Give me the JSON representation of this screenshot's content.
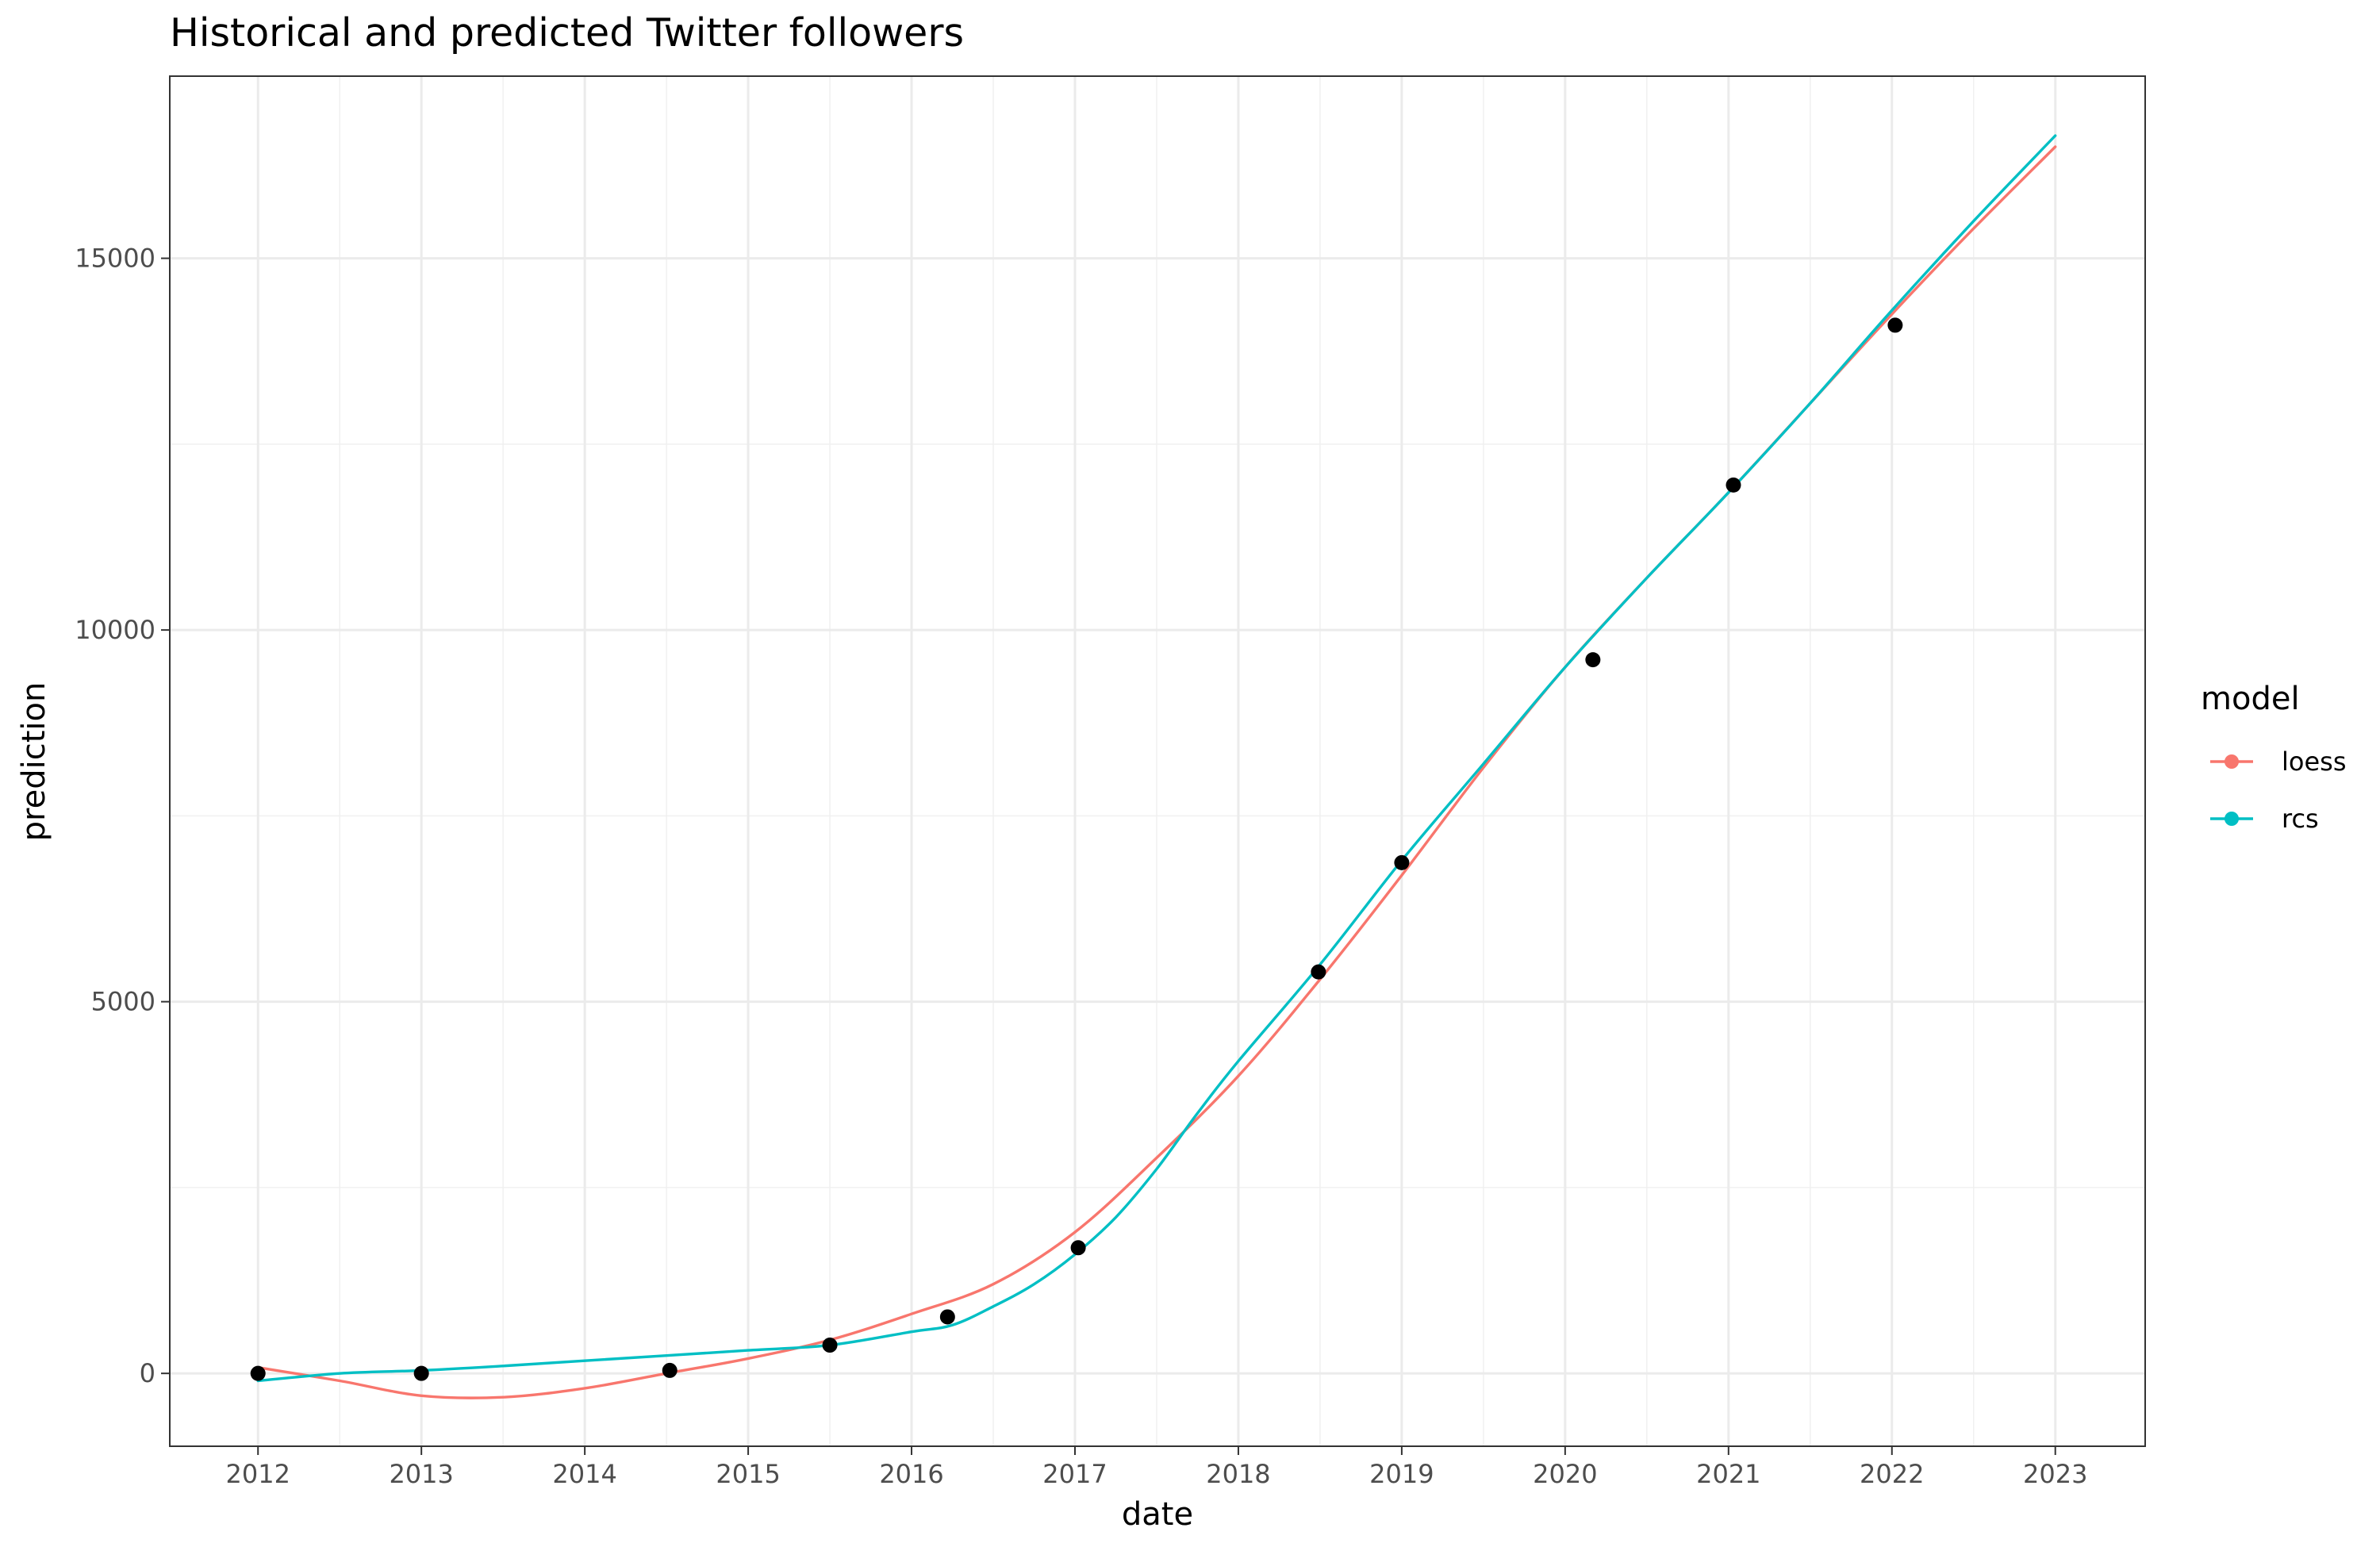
{
  "chart_data": {
    "type": "line",
    "title": "Historical and predicted Twitter followers",
    "xlabel": "date",
    "ylabel": "prediction",
    "xlim": [
      2011.46,
      2023.55
    ],
    "ylim": [
      -980,
      17450
    ],
    "x_ticks": [
      "2012",
      "2013",
      "2014",
      "2015",
      "2016",
      "2017",
      "2018",
      "2019",
      "2020",
      "2021",
      "2022",
      "2023"
    ],
    "y_ticks": [
      "0",
      "5000",
      "10000",
      "15000"
    ],
    "grid": true,
    "legend": {
      "title": "model",
      "position": "right",
      "entries": [
        "loess",
        "rcs"
      ]
    },
    "series": [
      {
        "name": "loess",
        "color": "#F8766D",
        "x": [
          2012.0,
          2012.5,
          2013.0,
          2013.5,
          2014.0,
          2014.5,
          2015.0,
          2015.5,
          2016.0,
          2016.5,
          2017.0,
          2017.5,
          2018.0,
          2018.5,
          2019.0,
          2019.5,
          2020.0,
          2020.5,
          2021.0,
          2021.5,
          2022.0,
          2022.5,
          2023.0
        ],
        "y": [
          80,
          -100,
          -300,
          -320,
          -200,
          0,
          200,
          450,
          800,
          1200,
          1900,
          2900,
          4000,
          5300,
          6700,
          8150,
          9500,
          10700,
          11850,
          13050,
          14250,
          15400,
          16500
        ]
      },
      {
        "name": "rcs",
        "color": "#00BFC4",
        "x": [
          2012.0,
          2012.5,
          2013.0,
          2013.5,
          2014.0,
          2014.5,
          2015.0,
          2015.5,
          2016.0,
          2016.25,
          2016.5,
          2016.75,
          2017.0,
          2017.25,
          2017.5,
          2017.75,
          2018.0,
          2018.5,
          2019.0,
          2019.5,
          2020.0,
          2020.5,
          2021.0,
          2021.5,
          2022.0,
          2022.5,
          2023.0
        ],
        "y": [
          -100,
          0,
          40,
          100,
          170,
          240,
          310,
          380,
          560,
          650,
          900,
          1200,
          1600,
          2100,
          2750,
          3500,
          4200,
          5500,
          6900,
          8200,
          9500,
          10700,
          11850,
          13050,
          14300,
          15500,
          16650
        ]
      }
    ],
    "points": {
      "x": [
        2012.0,
        2013.0,
        2014.52,
        2015.5,
        2016.22,
        2017.02,
        2018.49,
        2019.0,
        2020.17,
        2021.03,
        2022.02
      ],
      "y": [
        0,
        0,
        40,
        380,
        760,
        1690,
        5400,
        6870,
        9600,
        11950,
        14100
      ]
    }
  }
}
